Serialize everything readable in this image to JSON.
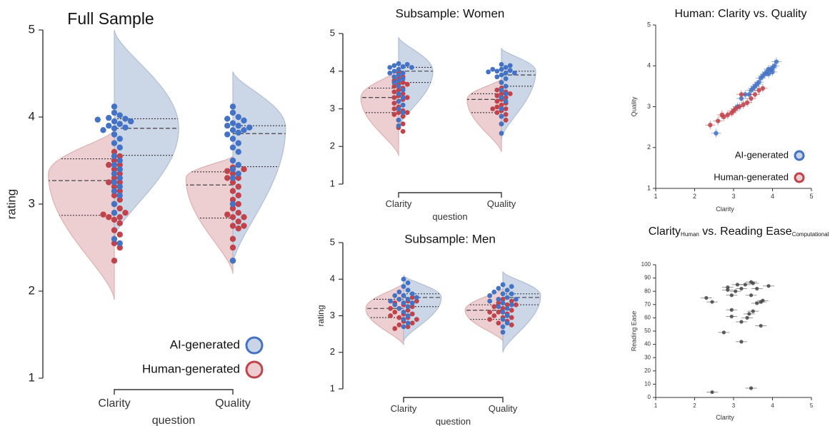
{
  "colors": {
    "ai": "#4472c4",
    "human": "#c0434b",
    "ai_fill": "#c9d4e6",
    "human_fill": "#edcdcf",
    "axis": "#333333",
    "dot_gray": "#444444"
  },
  "chart_data": [
    {
      "id": "full",
      "type": "violin",
      "title": "Full Sample",
      "xlabel": "question",
      "ylabel": "rating",
      "categories": [
        "Clarity",
        "Quality"
      ],
      "ylim": [
        1,
        5
      ],
      "yticks": [
        "1",
        "2",
        "3",
        "4",
        "5"
      ],
      "legend": {
        "placement": "bottom-right",
        "items": [
          "AI-generated",
          "Human-generated"
        ]
      },
      "series": [
        {
          "key": "human",
          "name": "Human-generated",
          "groups": [
            {
              "min": 1.9,
              "max": 3.85,
              "peak": 3.35,
              "width": 0.45,
              "quartiles": [
                2.87,
                3.27,
                3.52
              ],
              "points": [
                3.6,
                3.55,
                3.5,
                3.45,
                3.4,
                3.35,
                3.3,
                3.25,
                3.2,
                3.15,
                3.1,
                3.05,
                3.0,
                2.95,
                2.9,
                2.88,
                2.85,
                2.82,
                2.78,
                2.7,
                2.65,
                2.55,
                2.5,
                2.35,
                3.45,
                3.25,
                2.85,
                2.9
              ]
            },
            {
              "min": 2.2,
              "max": 3.55,
              "peak": 3.3,
              "width": 0.32,
              "quartiles": [
                2.84,
                3.22,
                3.37
              ],
              "points": [
                3.42,
                3.4,
                3.38,
                3.35,
                3.3,
                3.25,
                3.2,
                3.15,
                3.1,
                3.05,
                3.0,
                2.95,
                2.9,
                2.88,
                2.85,
                2.8,
                2.75,
                2.72,
                2.6,
                2.5,
                2.35,
                3.3,
                2.75,
                2.85
              ]
            }
          ]
        },
        {
          "key": "ai",
          "name": "AI-generated",
          "groups": [
            {
              "min": 2.6,
              "max": 5.0,
              "peak": 3.87,
              "width": 0.44,
              "quartiles": [
                3.56,
                3.87,
                3.98
              ],
              "points": [
                4.12,
                4.05,
                4.02,
                3.99,
                3.98,
                3.97,
                3.95,
                3.92,
                3.9,
                3.87,
                3.85,
                3.8,
                3.75,
                3.7,
                3.65,
                3.55,
                3.5,
                3.45,
                3.4,
                3.35,
                3.3,
                3.25,
                3.2,
                3.15,
                3.1,
                3.0,
                2.9,
                2.6,
                2.55,
                3.95,
                3.88
              ]
            },
            {
              "min": 2.3,
              "max": 4.52,
              "peak": 3.88,
              "width": 0.36,
              "quartiles": [
                3.43,
                3.81,
                3.9
              ],
              "points": [
                4.12,
                4.05,
                4.0,
                3.98,
                3.96,
                3.93,
                3.9,
                3.88,
                3.85,
                3.82,
                3.8,
                3.75,
                3.7,
                3.65,
                3.6,
                3.5,
                3.45,
                3.4,
                3.35,
                3.3,
                3.0,
                2.35,
                3.85,
                3.9
              ]
            }
          ]
        }
      ]
    },
    {
      "id": "women",
      "type": "violin",
      "title": "Subsample: Women",
      "xlabel": "question",
      "ylabel": "",
      "categories": [
        "Clarity",
        "Quality"
      ],
      "ylim": [
        1,
        5
      ],
      "yticks": [
        "1",
        "2",
        "3",
        "4",
        "5"
      ],
      "series": [
        {
          "key": "human",
          "name": "Human-generated",
          "groups": [
            {
              "min": 1.75,
              "max": 4.05,
              "peak": 3.3,
              "width": 0.55,
              "quartiles": [
                2.9,
                3.3,
                3.55
              ],
              "points": [
                3.95,
                3.85,
                3.8,
                3.75,
                3.7,
                3.65,
                3.6,
                3.55,
                3.5,
                3.45,
                3.4,
                3.35,
                3.3,
                3.25,
                3.2,
                3.15,
                3.1,
                3.05,
                3.0,
                2.95,
                2.9,
                2.85,
                2.8,
                2.7,
                2.6,
                2.5,
                2.4,
                3.65,
                3.3,
                2.9
              ]
            },
            {
              "min": 1.85,
              "max": 3.8,
              "peak": 3.25,
              "width": 0.5,
              "quartiles": [
                2.9,
                3.25,
                3.4
              ],
              "points": [
                3.7,
                3.6,
                3.55,
                3.5,
                3.45,
                3.4,
                3.35,
                3.3,
                3.25,
                3.2,
                3.15,
                3.1,
                3.05,
                3.0,
                2.95,
                2.9,
                2.85,
                2.8,
                2.7,
                2.6,
                3.4,
                3.0
              ]
            }
          ]
        },
        {
          "key": "ai",
          "name": "AI-generated",
          "groups": [
            {
              "min": 2.5,
              "max": 4.9,
              "peak": 4.0,
              "width": 0.5,
              "quartiles": [
                3.7,
                4.0,
                4.1
              ],
              "points": [
                4.2,
                4.18,
                4.15,
                4.12,
                4.1,
                4.05,
                4.0,
                3.95,
                3.9,
                3.85,
                3.8,
                3.75,
                3.7,
                3.6,
                3.5,
                3.4,
                3.3,
                3.2,
                3.1,
                3.0,
                2.9,
                2.7,
                2.55,
                4.1,
                3.95
              ]
            },
            {
              "min": 2.2,
              "max": 4.6,
              "peak": 4.0,
              "width": 0.5,
              "quartiles": [
                3.6,
                3.9,
                4.0
              ],
              "points": [
                4.18,
                4.15,
                4.1,
                4.05,
                4.02,
                4.0,
                3.98,
                3.95,
                3.9,
                3.85,
                3.8,
                3.7,
                3.6,
                3.5,
                3.4,
                3.3,
                3.2,
                3.0,
                2.8,
                2.6,
                2.35,
                4.05,
                3.95
              ]
            }
          ]
        }
      ]
    },
    {
      "id": "men",
      "type": "violin",
      "title": "Subsample: Men",
      "xlabel": "question",
      "ylabel": "rating",
      "categories": [
        "Clarity",
        "Quality"
      ],
      "ylim": [
        1,
        5
      ],
      "yticks": [
        "1",
        "2",
        "3",
        "4",
        "5"
      ],
      "series": [
        {
          "key": "human",
          "name": "Human-generated",
          "groups": [
            {
              "min": 2.2,
              "max": 3.9,
              "peak": 3.2,
              "width": 0.55,
              "quartiles": [
                2.95,
                3.2,
                3.45
              ],
              "points": [
                3.55,
                3.5,
                3.45,
                3.4,
                3.35,
                3.3,
                3.25,
                3.2,
                3.15,
                3.1,
                3.05,
                3.0,
                2.95,
                2.9,
                2.85,
                2.8,
                2.75,
                2.7,
                2.65,
                3.4,
                3.2,
                3.05,
                2.95
              ]
            },
            {
              "min": 2.3,
              "max": 3.75,
              "peak": 3.15,
              "width": 0.55,
              "quartiles": [
                2.9,
                3.15,
                3.3
              ],
              "points": [
                3.45,
                3.4,
                3.35,
                3.3,
                3.25,
                3.2,
                3.15,
                3.1,
                3.05,
                3.0,
                2.95,
                2.9,
                2.85,
                2.8,
                2.75,
                3.3,
                3.1,
                2.95
              ]
            }
          ]
        },
        {
          "key": "ai",
          "name": "AI-generated",
          "groups": [
            {
              "min": 2.3,
              "max": 4.1,
              "peak": 3.5,
              "width": 0.55,
              "quartiles": [
                3.25,
                3.5,
                3.6
              ],
              "points": [
                4.0,
                3.9,
                3.8,
                3.7,
                3.65,
                3.6,
                3.55,
                3.5,
                3.45,
                3.4,
                3.35,
                3.3,
                3.25,
                3.2,
                3.1,
                3.0,
                2.9,
                2.8,
                2.7,
                3.55,
                3.45,
                3.35
              ]
            },
            {
              "min": 2.0,
              "max": 4.2,
              "peak": 3.55,
              "width": 0.55,
              "quartiles": [
                3.3,
                3.5,
                3.6
              ],
              "points": [
                3.85,
                3.8,
                3.75,
                3.7,
                3.65,
                3.6,
                3.55,
                3.5,
                3.45,
                3.4,
                3.35,
                3.3,
                3.25,
                3.2,
                3.1,
                3.0,
                2.9,
                2.8,
                2.7,
                2.55,
                3.6,
                3.45
              ]
            }
          ]
        }
      ]
    },
    {
      "id": "clarity_quality",
      "type": "scatter",
      "title": "Human: Clarity vs. Quality",
      "xlabel": "Clarity",
      "ylabel": "Quality",
      "xlim": [
        1,
        5
      ],
      "ylim": [
        1,
        5
      ],
      "xticks": [
        "1",
        "2",
        "3",
        "4",
        "5"
      ],
      "yticks": [
        "1",
        "2",
        "3",
        "4",
        "5"
      ],
      "legend": {
        "placement": "bottom-right",
        "items": [
          "AI-generated",
          "Human-generated"
        ]
      },
      "series": [
        {
          "key": "ai",
          "name": "AI-generated",
          "points": [
            [
              4.1,
              4.1
            ],
            [
              4.05,
              4.0
            ],
            [
              4.0,
              3.95
            ],
            [
              3.95,
              3.9
            ],
            [
              3.9,
              3.92
            ],
            [
              3.85,
              3.85
            ],
            [
              3.8,
              3.8
            ],
            [
              3.75,
              3.75
            ],
            [
              3.7,
              3.7
            ],
            [
              3.65,
              3.6
            ],
            [
              3.6,
              3.55
            ],
            [
              3.55,
              3.5
            ],
            [
              3.5,
              3.45
            ],
            [
              3.45,
              3.4
            ],
            [
              3.4,
              3.3
            ],
            [
              3.3,
              3.3
            ],
            [
              3.2,
              3.2
            ],
            [
              3.1,
              3.0
            ],
            [
              2.55,
              2.35
            ],
            [
              3.9,
              3.8
            ],
            [
              4.0,
              3.85
            ]
          ]
        },
        {
          "key": "human",
          "name": "Human-generated",
          "points": [
            [
              2.4,
              2.55
            ],
            [
              2.6,
              2.65
            ],
            [
              2.75,
              2.75
            ],
            [
              2.85,
              2.8
            ],
            [
              2.95,
              2.85
            ],
            [
              3.05,
              2.95
            ],
            [
              3.15,
              3.0
            ],
            [
              3.25,
              3.05
            ],
            [
              3.35,
              3.1
            ],
            [
              3.45,
              3.2
            ],
            [
              3.55,
              3.3
            ],
            [
              3.65,
              3.4
            ],
            [
              3.75,
              3.45
            ],
            [
              3.2,
              3.3
            ],
            [
              3.0,
              2.9
            ],
            [
              2.7,
              2.8
            ]
          ]
        }
      ]
    },
    {
      "id": "clarity_reading",
      "type": "scatter",
      "title_main": "Clarity",
      "title_sub1": "Human",
      "title_mid": " vs. Reading Ease",
      "title_sub2": "Computational",
      "xlabel": "Clarity",
      "ylabel": "Reading Ease",
      "xlim": [
        1,
        5
      ],
      "ylim": [
        0,
        100
      ],
      "xticks": [
        "1",
        "2",
        "3",
        "4",
        "5"
      ],
      "yticks": [
        "0",
        "10",
        "20",
        "30",
        "40",
        "50",
        "60",
        "70",
        "80",
        "90",
        "100"
      ],
      "series": [
        {
          "key": "gray",
          "name": "",
          "points": [
            [
              3.45,
              87
            ],
            [
              3.5,
              86
            ],
            [
              3.3,
              85
            ],
            [
              3.1,
              85
            ],
            [
              3.9,
              84
            ],
            [
              2.85,
              83
            ],
            [
              3.2,
              82
            ],
            [
              3.6,
              82
            ],
            [
              2.85,
              81
            ],
            [
              3.05,
              80
            ],
            [
              2.95,
              77
            ],
            [
              3.45,
              77
            ],
            [
              2.3,
              75
            ],
            [
              2.45,
              72
            ],
            [
              3.75,
              73
            ],
            [
              3.7,
              72
            ],
            [
              3.6,
              71
            ],
            [
              2.95,
              66
            ],
            [
              3.5,
              65
            ],
            [
              3.4,
              63
            ],
            [
              2.95,
              61
            ],
            [
              3.35,
              60
            ],
            [
              3.2,
              57
            ],
            [
              3.7,
              54
            ],
            [
              2.75,
              49
            ],
            [
              3.2,
              42
            ],
            [
              2.45,
              4
            ],
            [
              3.45,
              7
            ]
          ]
        }
      ]
    }
  ]
}
